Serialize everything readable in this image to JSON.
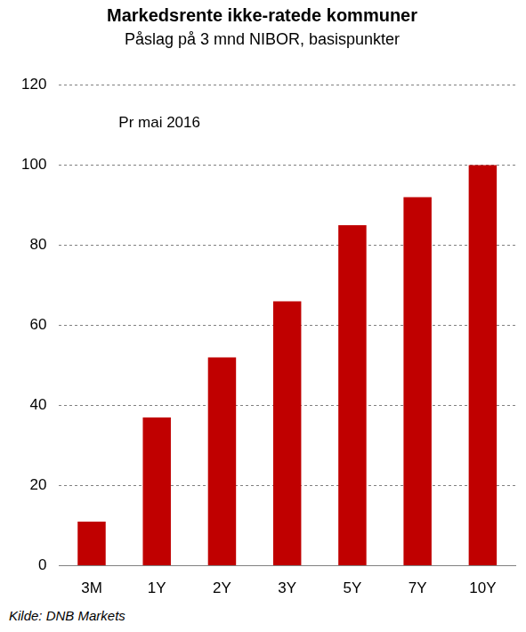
{
  "chart_data": {
    "type": "bar",
    "title": "Markedsrente ikke-ratede kommuner",
    "subtitle": "Påslag på 3 mnd NIBOR, basispunkter",
    "annotation": "Pr mai 2016",
    "source": "Kilde: DNB Markets",
    "categories": [
      "3M",
      "1Y",
      "2Y",
      "3Y",
      "5Y",
      "7Y",
      "10Y"
    ],
    "values": [
      11,
      37,
      52,
      66,
      85,
      92,
      100
    ],
    "color": "#c00000",
    "ylim": [
      0,
      120
    ],
    "yticks": [
      0,
      20,
      40,
      60,
      80,
      100,
      120
    ],
    "grid": true
  }
}
